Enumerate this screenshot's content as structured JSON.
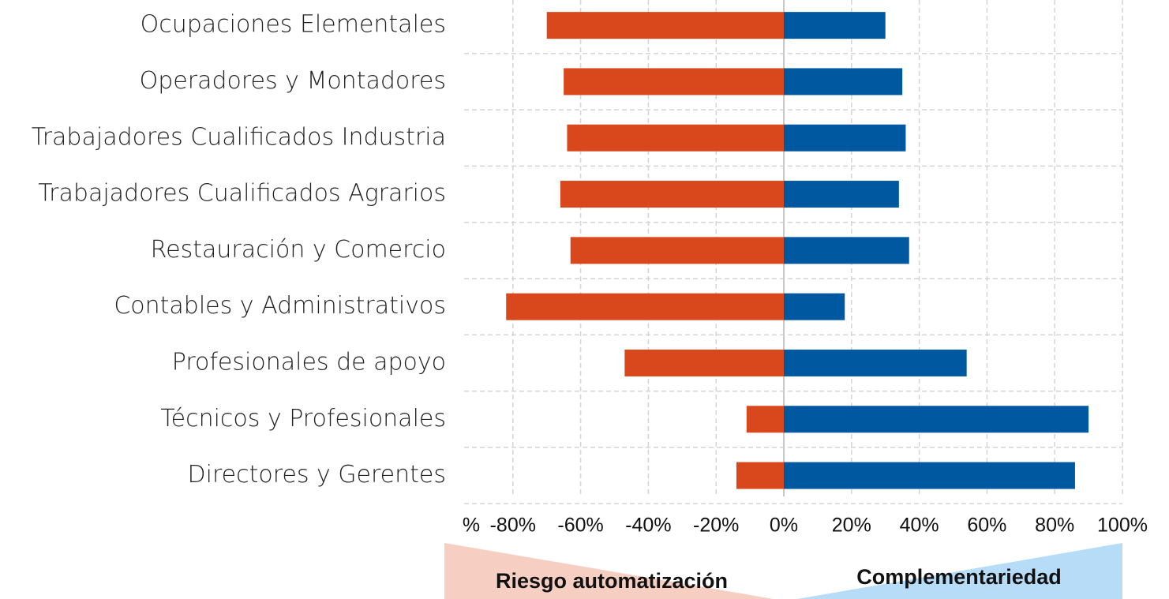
{
  "chart_data": {
    "type": "diverging_bar",
    "categories": [
      "Ocupaciones Elementales",
      "Operadores y Montadores",
      "Trabajadores Cualificados Industria",
      "Trabajadores Cualificados Agrarios",
      "Restauración y Comercio",
      "Contables y Administrativos",
      "Profesionales de apoyo",
      "Técnicos y Profesionales",
      "Directores y Gerentes"
    ],
    "series": [
      {
        "name": "Riesgo automatización",
        "color": "#d9481c",
        "values": [
          -70,
          -65,
          -64,
          -66,
          -63,
          -82,
          -47,
          -11,
          -14
        ]
      },
      {
        "name": "Complementariedad",
        "color": "#0059a0",
        "values": [
          30,
          35,
          36,
          34,
          37,
          18,
          54,
          90,
          86
        ]
      }
    ],
    "xlim": [
      -100,
      100
    ],
    "xticks": [
      {
        "value": -100,
        "label": "%"
      },
      {
        "value": -80,
        "label": "-80%"
      },
      {
        "value": -60,
        "label": "-60%"
      },
      {
        "value": -40,
        "label": "-40%"
      },
      {
        "value": -20,
        "label": "-20%"
      },
      {
        "value": 0,
        "label": "0%"
      },
      {
        "value": 20,
        "label": "20%"
      },
      {
        "value": 40,
        "label": "40%"
      },
      {
        "value": 60,
        "label": "60%"
      },
      {
        "value": 80,
        "label": "80%"
      },
      {
        "value": 100,
        "label": "100%"
      }
    ],
    "grid": true
  }
}
